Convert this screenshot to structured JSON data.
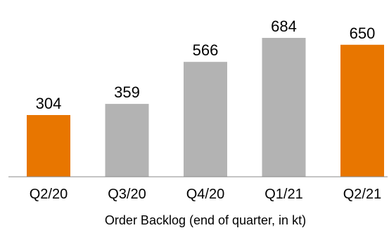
{
  "chart_data": {
    "type": "bar",
    "categories": [
      "Q2/20",
      "Q3/20",
      "Q4/20",
      "Q1/21",
      "Q2/21"
    ],
    "values": [
      304,
      359,
      566,
      684,
      650
    ],
    "bar_colors": [
      "#E87600",
      "#B3B3B3",
      "#B3B3B3",
      "#B3B3B3",
      "#E87600"
    ],
    "title": "",
    "xlabel": "Order Backlog (end of quarter, in kt)",
    "ylabel": "",
    "ylim": [
      0,
      700
    ],
    "grid": false,
    "legend": "none",
    "data_labels": true
  }
}
